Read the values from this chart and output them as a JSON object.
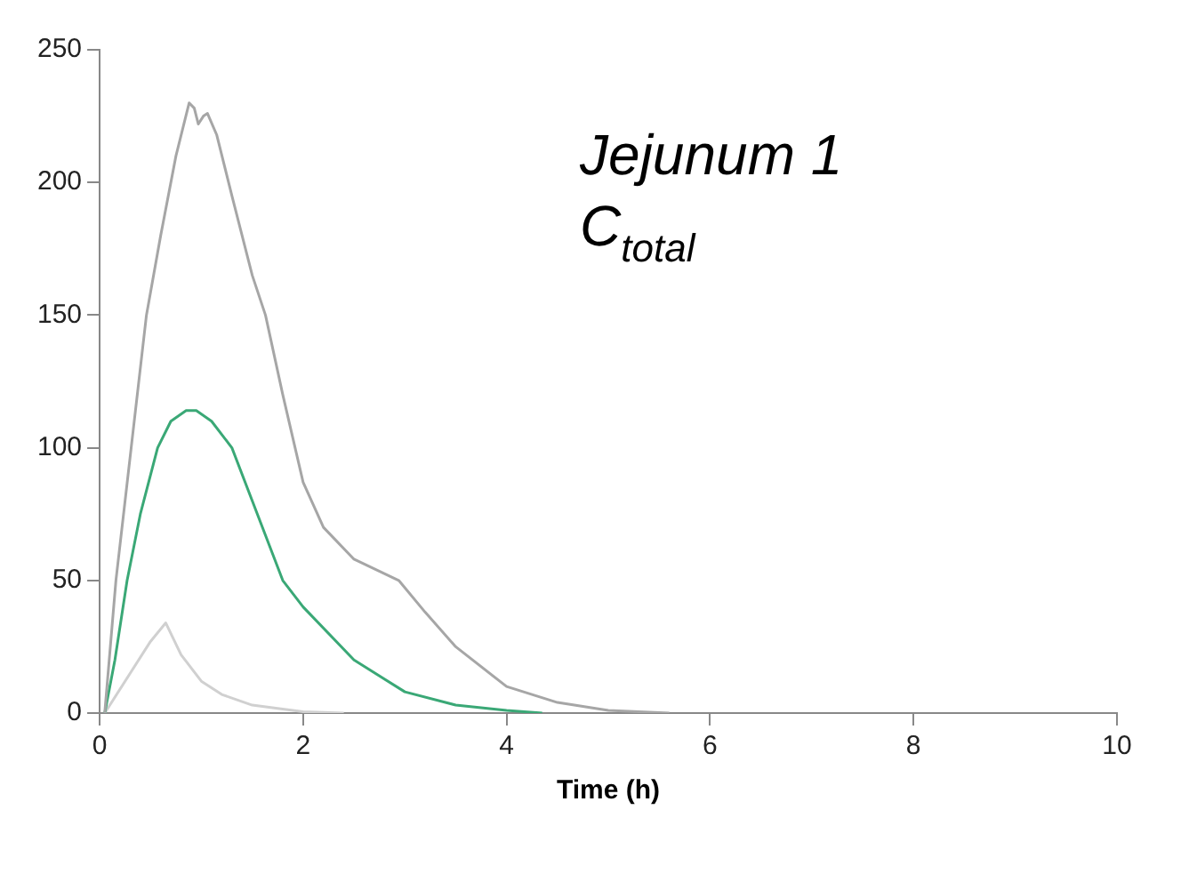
{
  "chart_data": {
    "type": "line",
    "xlabel": "Time (h)",
    "annotations": [
      "Jejunum 1",
      "C$_{total}$"
    ],
    "xlim": [
      0,
      10
    ],
    "xticks": [
      0,
      2,
      4,
      6,
      8,
      10
    ],
    "ylim": [
      0,
      250
    ],
    "yticks": [
      0,
      50,
      100,
      150,
      200,
      250
    ],
    "grid": false,
    "legend": false,
    "marker": "none",
    "line_style": "solid",
    "series": [
      {
        "color": "#a6a6a6",
        "x": [
          0.05,
          0.16,
          0.31,
          0.46,
          0.6,
          0.75,
          0.88,
          0.93,
          0.97,
          1.02,
          1.06,
          1.15,
          1.3,
          1.5,
          1.63,
          1.8,
          2,
          2.2,
          2.5,
          2.94,
          3.2,
          3.5,
          4,
          4.5,
          5,
          5.6
        ],
        "values": [
          0,
          50,
          100,
          150,
          180,
          210,
          230,
          228,
          222,
          225,
          226,
          218,
          195,
          165,
          150,
          120,
          87,
          70,
          58,
          50,
          38,
          25,
          10,
          4,
          1,
          0
        ]
      },
      {
        "color": "#3aa876",
        "x": [
          0.05,
          0.15,
          0.27,
          0.4,
          0.57,
          0.7,
          0.85,
          0.95,
          1.1,
          1.3,
          1.5,
          1.8,
          2,
          2.5,
          3,
          3.5,
          4,
          4.35
        ],
        "values": [
          0,
          20,
          50,
          75,
          100,
          110,
          114,
          114,
          110,
          100,
          80,
          50,
          40,
          20,
          8,
          3,
          1,
          0
        ]
      },
      {
        "color": "#d0d0d0",
        "x": [
          0.05,
          0.3,
          0.5,
          0.65,
          0.8,
          1,
          1.2,
          1.5,
          2,
          2.4
        ],
        "values": [
          0,
          15,
          27,
          34,
          22,
          12,
          7,
          3,
          0.5,
          0
        ]
      }
    ]
  }
}
